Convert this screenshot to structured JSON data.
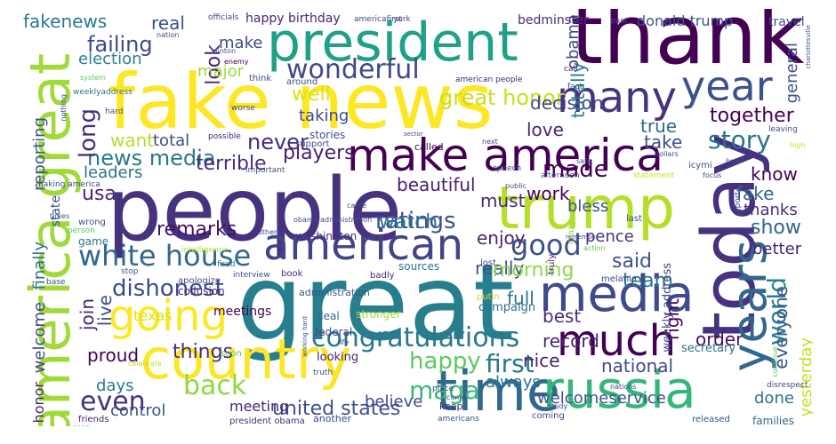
{
  "palette": {
    "background": "#ffffff",
    "colormap": "viridis",
    "sample_colors": [
      "#440154",
      "#46327e",
      "#365c8d",
      "#277f8e",
      "#1fa187",
      "#4ac16d",
      "#a0da39",
      "#fde725"
    ]
  },
  "words": [
    {
      "text": "great",
      "color": "#277f8e"
    },
    {
      "text": "people",
      "color": "#46327e"
    },
    {
      "text": "fake news",
      "color": "#fde725"
    },
    {
      "text": "thank",
      "color": "#440154"
    },
    {
      "text": "president",
      "color": "#1fa187"
    },
    {
      "text": "today",
      "color": "#46327e"
    },
    {
      "text": "america great",
      "color": "#a0da39"
    },
    {
      "text": "country",
      "color": "#fde725"
    },
    {
      "text": "trump",
      "color": "#b5de2b"
    },
    {
      "text": "make america",
      "color": "#440154"
    },
    {
      "text": "time",
      "color": "#31688e"
    },
    {
      "text": "russia",
      "color": "#35b779"
    },
    {
      "text": "media",
      "color": "#3e4a89"
    },
    {
      "text": "american",
      "color": "#414487"
    },
    {
      "text": "much",
      "color": "#440154"
    },
    {
      "text": "years",
      "color": "#31688e"
    },
    {
      "text": "many",
      "color": "#46327e"
    },
    {
      "text": "year",
      "color": "#3b528b"
    },
    {
      "text": "going",
      "color": "#fde725"
    },
    {
      "text": "congratulations",
      "color": "#2a788e"
    },
    {
      "text": "white house",
      "color": "#31688e"
    },
    {
      "text": "wonderful",
      "color": "#3e4a89"
    },
    {
      "text": "news media",
      "color": "#2a788e"
    },
    {
      "text": "failing",
      "color": "#3e4a89"
    },
    {
      "text": "story",
      "color": "#2c728e"
    },
    {
      "text": "world",
      "color": "#26828e"
    },
    {
      "text": "good",
      "color": "#3b528b"
    },
    {
      "text": "united states",
      "color": "#3b528b"
    },
    {
      "text": "back",
      "color": "#8fd744"
    },
    {
      "text": "even",
      "color": "#46327e"
    },
    {
      "text": "happy",
      "color": "#5ec962"
    },
    {
      "text": "first",
      "color": "#2a788e"
    },
    {
      "text": "dishonest",
      "color": "#3e4a89"
    },
    {
      "text": "great honor",
      "color": "#c8e020"
    },
    {
      "text": "ratings",
      "color": "#3b528b"
    },
    {
      "text": "never",
      "color": "#472d7b"
    },
    {
      "text": "watch",
      "color": "#2c728e"
    },
    {
      "text": "maga",
      "color": "#38b977"
    },
    {
      "text": "long",
      "color": "#472d7b"
    },
    {
      "text": "look",
      "color": "#482475"
    },
    {
      "text": "fakenews",
      "color": "#2a788e"
    },
    {
      "text": "real",
      "color": "#3b528b"
    },
    {
      "text": "make",
      "color": "#3e4a89"
    },
    {
      "text": "election",
      "color": "#26828e"
    },
    {
      "text": "major",
      "color": "#a0da39"
    },
    {
      "text": "well",
      "color": "#d8e219"
    },
    {
      "text": "taking",
      "color": "#3e4a89"
    },
    {
      "text": "want",
      "color": "#b5de2b"
    },
    {
      "text": "total",
      "color": "#3e4a89"
    },
    {
      "text": "terrible",
      "color": "#472d7b"
    },
    {
      "text": "players",
      "color": "#481f70"
    },
    {
      "text": "leaders",
      "color": "#2c728e"
    },
    {
      "text": "usa",
      "color": "#482475"
    },
    {
      "text": "remarks",
      "color": "#471063"
    },
    {
      "text": "beautiful",
      "color": "#481f70"
    },
    {
      "text": "must",
      "color": "#482475"
    },
    {
      "text": "made",
      "color": "#440154"
    },
    {
      "text": "work",
      "color": "#440154"
    },
    {
      "text": "bless",
      "color": "#3b528b"
    },
    {
      "text": "enjoy",
      "color": "#482475"
    },
    {
      "text": "really",
      "color": "#3b528b"
    },
    {
      "text": "pence",
      "color": "#472d7b"
    },
    {
      "text": "said",
      "color": "#3b528b"
    },
    {
      "text": "morning",
      "color": "#8fd744"
    },
    {
      "text": "team",
      "color": "#2a788e"
    },
    {
      "text": "show",
      "color": "#31688e"
    },
    {
      "text": "better",
      "color": "#482475"
    },
    {
      "text": "fake",
      "color": "#31688e"
    },
    {
      "text": "thanks",
      "color": "#472d7b"
    },
    {
      "text": "know",
      "color": "#440154"
    },
    {
      "text": "take",
      "color": "#3b528b"
    },
    {
      "text": "true",
      "color": "#31688e"
    },
    {
      "text": "together",
      "color": "#440154"
    },
    {
      "text": "love",
      "color": "#482475"
    },
    {
      "text": "decision",
      "color": "#3e4a89"
    },
    {
      "text": "general",
      "color": "#3b528b"
    },
    {
      "text": "totally",
      "color": "#2a788e"
    },
    {
      "text": "obama",
      "color": "#3e4a89"
    },
    {
      "text": "donald trump",
      "color": "#3b528b"
    },
    {
      "text": "travel",
      "color": "#3e4a89"
    },
    {
      "text": "bedminster",
      "color": "#472d7b"
    },
    {
      "text": "happy birthday",
      "color": "#482475"
    },
    {
      "text": "full",
      "color": "#2c728e"
    },
    {
      "text": "best",
      "color": "#472d7b"
    },
    {
      "text": "record",
      "color": "#482475"
    },
    {
      "text": "right",
      "color": "#440154"
    },
    {
      "text": "order",
      "color": "#471063"
    },
    {
      "text": "everyone",
      "color": "#3b528b"
    },
    {
      "text": "national",
      "color": "#3e4a89"
    },
    {
      "text": "nice",
      "color": "#481f70"
    },
    {
      "text": "always",
      "color": "#2a788e"
    },
    {
      "text": "believe",
      "color": "#3e4a89"
    },
    {
      "text": "things",
      "color": "#472d7b"
    },
    {
      "text": "proud",
      "color": "#440154"
    },
    {
      "text": "days",
      "color": "#2a788e"
    },
    {
      "text": "control",
      "color": "#3b528b"
    },
    {
      "text": "meetings",
      "color": "#440154"
    },
    {
      "text": "join",
      "color": "#482475"
    },
    {
      "text": "live",
      "color": "#3e4a89"
    },
    {
      "text": "texas",
      "color": "#d8e219"
    },
    {
      "text": "done",
      "color": "#2c728e"
    },
    {
      "text": "yesterday",
      "color": "#c8e020"
    },
    {
      "text": "welcomeservice",
      "color": "#3b528b"
    },
    {
      "text": "meeting",
      "color": "#482475"
    },
    {
      "text": "reporting",
      "color": "#3b528b"
    },
    {
      "text": "finally",
      "color": "#2c728e"
    },
    {
      "text": "welcome",
      "color": "#3e4a89"
    },
    {
      "text": "honor",
      "color": "#482475"
    },
    {
      "text": "state",
      "color": "#3b528b"
    },
    {
      "text": "washington",
      "color": "#472d7b"
    },
    {
      "text": "administration",
      "color": "#3b528b"
    },
    {
      "text": "collusion",
      "color": "#482475"
    },
    {
      "text": "federal",
      "color": "#3e4a89"
    },
    {
      "text": "looking",
      "color": "#482475"
    },
    {
      "text": "deal",
      "color": "#31688e"
    },
    {
      "text": "weekly address",
      "color": "#3e4a89"
    },
    {
      "text": "secretary",
      "color": "#2c728e"
    },
    {
      "text": "campaign",
      "color": "#2c728e"
    },
    {
      "text": "support",
      "color": "#3e4a89"
    },
    {
      "text": "stories",
      "color": "#3b528b"
    },
    {
      "text": "called",
      "color": "#440154"
    },
    {
      "text": "keep",
      "color": "#482475"
    },
    {
      "text": "another",
      "color": "#3e4a89"
    },
    {
      "text": "families",
      "color": "#31688e"
    },
    {
      "text": "released",
      "color": "#3b528b"
    },
    {
      "text": "americans",
      "color": "#3b528b"
    },
    {
      "text": "president obama",
      "color": "#472d7b"
    },
    {
      "text": "friends",
      "color": "#482475"
    },
    {
      "text": "game",
      "color": "#2c728e"
    },
    {
      "text": "celebrate",
      "color": "#b5de2b"
    },
    {
      "text": "base",
      "color": "#3b528b"
    },
    {
      "text": "apologize",
      "color": "#3e4a89"
    },
    {
      "text": "interview",
      "color": "#3b528b"
    },
    {
      "text": "book",
      "color": "#482475"
    },
    {
      "text": "badly",
      "color": "#482475"
    },
    {
      "text": "sources",
      "color": "#2c728e"
    },
    {
      "text": "stronger",
      "color": "#a0da39"
    },
    {
      "text": "soon",
      "color": "#5ec962"
    },
    {
      "text": "truth",
      "color": "#3b528b"
    },
    {
      "text": "place",
      "color": "#3e4a89"
    },
    {
      "text": "coming",
      "color": "#3e4a89"
    },
    {
      "text": "lost",
      "color": "#3e4a89"
    },
    {
      "text": "putin",
      "color": "#c8e020"
    },
    {
      "text": "truly",
      "color": "#482475"
    },
    {
      "text": "crazy",
      "color": "#a0da39"
    },
    {
      "text": "last",
      "color": "#3b528b"
    },
    {
      "text": "melania",
      "color": "#3e4a89"
    },
    {
      "text": "stop",
      "color": "#3b528b"
    },
    {
      "text": "intelligence",
      "color": "#b5de2b"
    },
    {
      "text": "fired",
      "color": "#2c728e"
    },
    {
      "text": "wrong",
      "color": "#3b528b"
    },
    {
      "text": "person",
      "color": "#5ec962"
    },
    {
      "text": "times",
      "color": "#3b528b"
    },
    {
      "text": "making america",
      "color": "#3e4a89"
    },
    {
      "text": "important",
      "color": "#3b528b"
    },
    {
      "text": "possible",
      "color": "#482475"
    },
    {
      "text": "worse",
      "color": "#3e4a89"
    },
    {
      "text": "hard",
      "color": "#3b528b"
    },
    {
      "text": "weeklyaddress",
      "color": "#2c728e"
    },
    {
      "text": "system",
      "color": "#5ec962"
    },
    {
      "text": "nothing",
      "color": "#3e4a89"
    },
    {
      "text": "think",
      "color": "#3e4a89"
    },
    {
      "text": "around",
      "color": "#3e4a89"
    },
    {
      "text": "american people",
      "color": "#482475"
    },
    {
      "text": "fact",
      "color": "#3b528b"
    },
    {
      "text": "call",
      "color": "#482475"
    },
    {
      "text": "past",
      "color": "#3e4a89"
    },
    {
      "text": "york",
      "color": "#3e4a89"
    },
    {
      "text": "officials",
      "color": "#3e4a89"
    },
    {
      "text": "americafirst",
      "color": "#3e4a89"
    },
    {
      "text": "clinton",
      "color": "#3b528b"
    },
    {
      "text": "enemy",
      "color": "#440154"
    },
    {
      "text": "nation",
      "color": "#3e4a89"
    },
    {
      "text": "charlottesville",
      "color": "#3b528b"
    },
    {
      "text": "icymi",
      "color": "#3b528b"
    },
    {
      "text": "leaving",
      "color": "#3e4a89"
    },
    {
      "text": "high",
      "color": "#c8e020"
    },
    {
      "text": "help",
      "color": "#3e4a89"
    },
    {
      "text": "report",
      "color": "#3e4a89"
    },
    {
      "text": "focus",
      "color": "#3e4a89"
    },
    {
      "text": "statement",
      "color": "#c8e020"
    },
    {
      "text": "afternoon",
      "color": "#3e4a89"
    },
    {
      "text": "speech",
      "color": "#3e4a89"
    },
    {
      "text": "safe",
      "color": "#3e4a89"
    },
    {
      "text": "next",
      "color": "#3e4a89"
    },
    {
      "text": "sector",
      "color": "#3e4a89"
    },
    {
      "text": "public",
      "color": "#3e4a89"
    },
    {
      "text": "came",
      "color": "#3e4a89"
    },
    {
      "text": "obama administration",
      "color": "#3e4a89"
    },
    {
      "text": "others",
      "color": "#3e4a89"
    },
    {
      "text": "action",
      "color": "#5ec962"
    },
    {
      "text": "life",
      "color": "#3e4a89"
    },
    {
      "text": "working hard",
      "color": "#3e4a89"
    },
    {
      "text": "nations",
      "color": "#3e4a89"
    },
    {
      "text": "study",
      "color": "#3e4a89"
    },
    {
      "text": "continue",
      "color": "#5ec962"
    },
    {
      "text": "disrespect",
      "color": "#3e4a89"
    },
    {
      "text": "remember",
      "color": "#3e4a89"
    },
    {
      "text": "seen",
      "color": "#3e4a89"
    },
    {
      "text": "come",
      "color": "#3e4a89"
    },
    {
      "text": "dollars",
      "color": "#3e4a89"
    }
  ]
}
